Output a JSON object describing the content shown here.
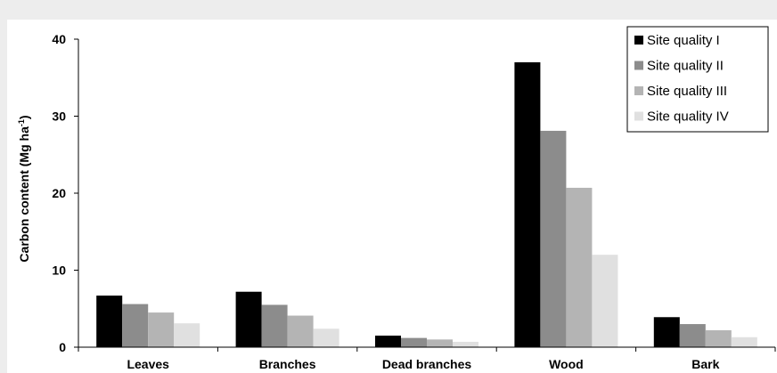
{
  "chart_data": {
    "type": "bar",
    "title": "",
    "xlabel": "",
    "ylabel": "Carbon content (Mg ha",
    "ylabel_superscript": "-1",
    "ylabel_suffix": ")",
    "ylim": [
      0,
      40
    ],
    "yticks": [
      "0",
      "10",
      "20",
      "30",
      "40"
    ],
    "grid": false,
    "legend_position": "top-right",
    "categories": [
      "Leaves",
      "Branches",
      "Dead branches",
      "Wood",
      "Bark"
    ],
    "series": [
      {
        "name": "Site quality I",
        "color": "#000000",
        "values": [
          6.7,
          7.2,
          1.5,
          37.0,
          3.9
        ]
      },
      {
        "name": "Site quality II",
        "color": "#8c8c8c",
        "values": [
          5.6,
          5.5,
          1.2,
          28.1,
          3.0
        ]
      },
      {
        "name": "Site quality III",
        "color": "#b4b4b4",
        "values": [
          4.5,
          4.1,
          1.0,
          20.7,
          2.2
        ]
      },
      {
        "name": "Site quality IV",
        "color": "#e0e0e0",
        "values": [
          3.1,
          2.4,
          0.7,
          12.0,
          1.3
        ]
      }
    ]
  }
}
